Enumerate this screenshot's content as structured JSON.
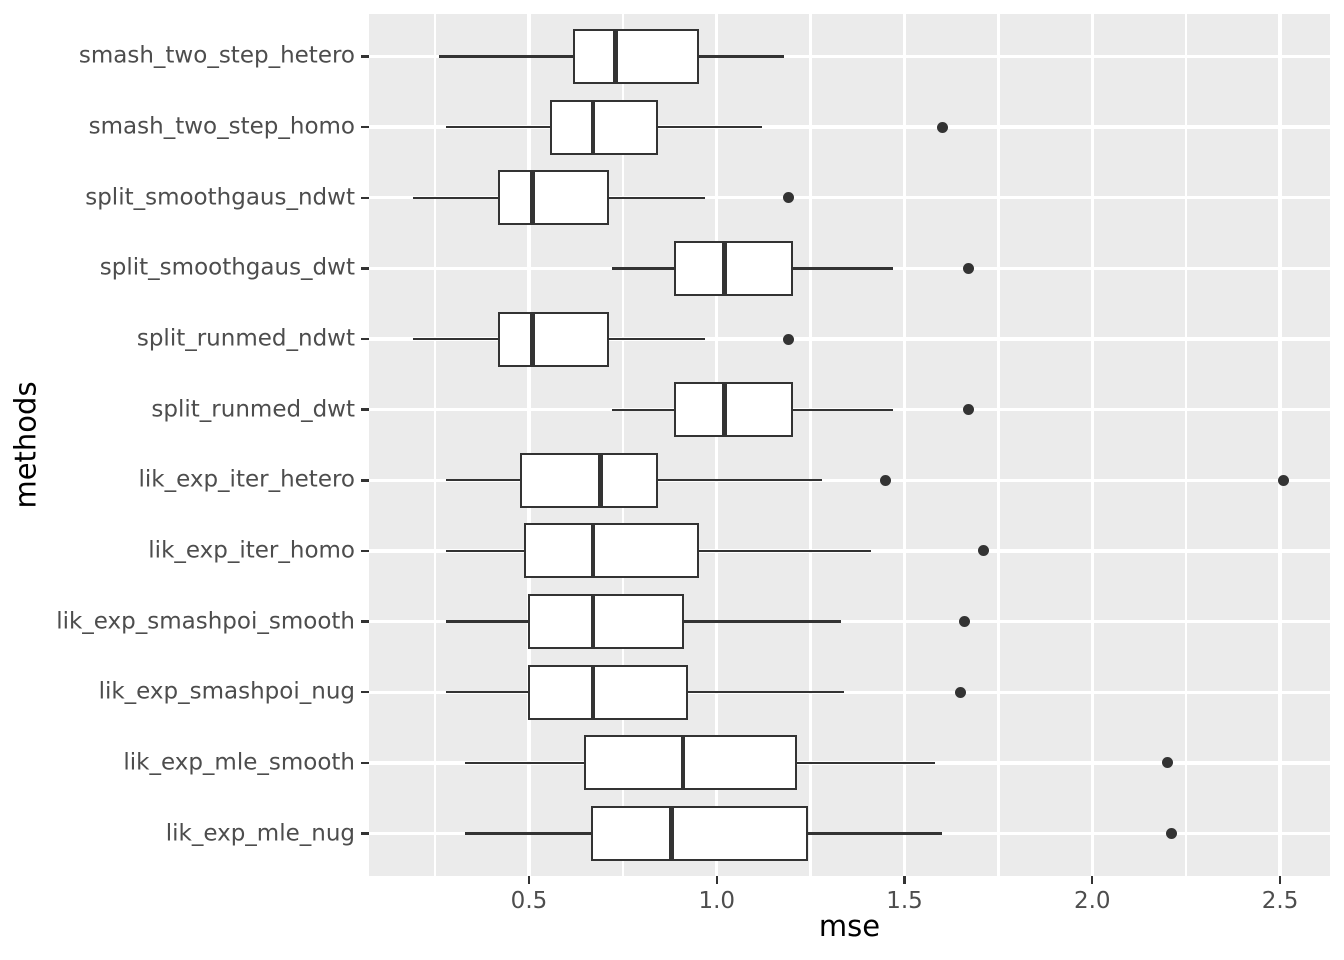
{
  "chart_data": {
    "type": "boxplot",
    "orientation": "horizontal",
    "title": "",
    "xlabel": "mse",
    "ylabel": "methods",
    "xlim": [
      0.074,
      2.633
    ],
    "x_major_ticks": [
      0.5,
      1.0,
      1.5,
      2.0,
      2.5
    ],
    "x_tick_labels": [
      "0.5",
      "1.0",
      "1.5",
      "2.0",
      "2.5"
    ],
    "x_minor_ticks": [
      0.25,
      0.75,
      1.25,
      1.75,
      2.25
    ],
    "grid": "white major+minor vertical lines, white major horizontal lines on gray panel",
    "legend": "none",
    "categories_top_to_bottom": [
      "smash_two_step_hetero",
      "smash_two_step_homo",
      "split_smoothgaus_ndwt",
      "split_smoothgaus_dwt",
      "split_runmed_ndwt",
      "split_runmed_dwt",
      "lik_exp_iter_hetero",
      "lik_exp_iter_homo",
      "lik_exp_smashpoi_smooth",
      "lik_exp_smashpoi_nug",
      "lik_exp_mle_smooth",
      "lik_exp_mle_nug"
    ],
    "boxes": [
      {
        "label": "smash_two_step_hetero",
        "whisker_low": 0.26,
        "q1": 0.62,
        "median": 0.73,
        "q3": 0.95,
        "whisker_high": 1.18,
        "outliers": []
      },
      {
        "label": "smash_two_step_homo",
        "whisker_low": 0.28,
        "q1": 0.56,
        "median": 0.67,
        "q3": 0.84,
        "whisker_high": 1.12,
        "outliers": [
          1.6
        ]
      },
      {
        "label": "split_smoothgaus_ndwt",
        "whisker_low": 0.19,
        "q1": 0.42,
        "median": 0.51,
        "q3": 0.71,
        "whisker_high": 0.97,
        "outliers": [
          1.19
        ]
      },
      {
        "label": "split_smoothgaus_dwt",
        "whisker_low": 0.72,
        "q1": 0.89,
        "median": 1.02,
        "q3": 1.2,
        "whisker_high": 1.47,
        "outliers": [
          1.67
        ]
      },
      {
        "label": "split_runmed_ndwt",
        "whisker_low": 0.19,
        "q1": 0.42,
        "median": 0.51,
        "q3": 0.71,
        "whisker_high": 0.97,
        "outliers": [
          1.19
        ]
      },
      {
        "label": "split_runmed_dwt",
        "whisker_low": 0.72,
        "q1": 0.89,
        "median": 1.02,
        "q3": 1.2,
        "whisker_high": 1.47,
        "outliers": [
          1.67
        ]
      },
      {
        "label": "lik_exp_iter_hetero",
        "whisker_low": 0.28,
        "q1": 0.48,
        "median": 0.69,
        "q3": 0.84,
        "whisker_high": 1.28,
        "outliers": [
          1.45,
          2.51
        ]
      },
      {
        "label": "lik_exp_iter_homo",
        "whisker_low": 0.28,
        "q1": 0.49,
        "median": 0.67,
        "q3": 0.95,
        "whisker_high": 1.41,
        "outliers": [
          1.71
        ]
      },
      {
        "label": "lik_exp_smashpoi_smooth",
        "whisker_low": 0.28,
        "q1": 0.5,
        "median": 0.67,
        "q3": 0.91,
        "whisker_high": 1.33,
        "outliers": [
          1.66
        ]
      },
      {
        "label": "lik_exp_smashpoi_nug",
        "whisker_low": 0.28,
        "q1": 0.5,
        "median": 0.67,
        "q3": 0.92,
        "whisker_high": 1.34,
        "outliers": [
          1.65
        ]
      },
      {
        "label": "lik_exp_mle_smooth",
        "whisker_low": 0.33,
        "q1": 0.65,
        "median": 0.91,
        "q3": 1.21,
        "whisker_high": 1.58,
        "outliers": [
          2.2
        ]
      },
      {
        "label": "lik_exp_mle_nug",
        "whisker_low": 0.33,
        "q1": 0.67,
        "median": 0.88,
        "q3": 1.24,
        "whisker_high": 1.6,
        "outliers": [
          2.21
        ]
      }
    ],
    "colors": {
      "panel_bg": "#EBEBEB",
      "grid": "#FFFFFF",
      "box_stroke": "#333333",
      "box_fill": "#FFFFFF",
      "outlier": "#333333",
      "tick_label": "#4D4D4D",
      "axis_title": "#000000"
    }
  }
}
